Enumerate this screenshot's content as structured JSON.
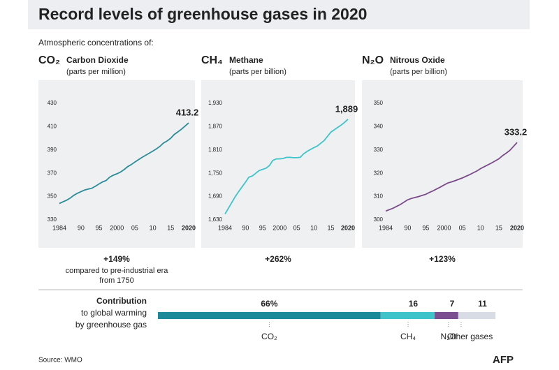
{
  "title": "Record levels of greenhouse gases in 2020",
  "subtitle": "Atmospheric concentrations of:",
  "source": "Source: WMO",
  "logo": "AFP",
  "chart_data": [
    {
      "type": "line",
      "formula": "CO₂",
      "title": "Carbon Dioxide",
      "unit": "(parts per million)",
      "x": [
        1984,
        1985,
        1986,
        1987,
        1988,
        1989,
        1990,
        1991,
        1992,
        1993,
        1994,
        1995,
        1996,
        1997,
        1998,
        1999,
        2000,
        2001,
        2002,
        2003,
        2004,
        2005,
        2006,
        2007,
        2008,
        2009,
        2010,
        2011,
        2012,
        2013,
        2014,
        2015,
        2016,
        2017,
        2018,
        2019,
        2020
      ],
      "series": [
        {
          "name": "Carbon Dioxide",
          "color": "#2a8c99",
          "values": [
            344.1,
            345.5,
            346.9,
            348.7,
            351.1,
            352.8,
            354.2,
            355.6,
            356.4,
            357.1,
            358.8,
            360.8,
            362.6,
            363.8,
            366.6,
            368.3,
            369.5,
            371.0,
            373.1,
            375.6,
            377.4,
            379.6,
            381.7,
            383.6,
            385.4,
            387.2,
            389.0,
            390.9,
            393.1,
            396.0,
            397.7,
            400.0,
            403.3,
            405.5,
            407.8,
            410.5,
            413.2
          ],
          "value_labels": [
            null,
            null,
            null,
            null,
            null,
            null,
            null,
            null,
            null,
            null,
            null,
            null,
            null,
            null,
            null,
            null,
            null,
            null,
            null,
            null,
            null,
            null,
            null,
            null,
            null,
            null,
            null,
            null,
            null,
            null,
            null,
            null,
            null,
            null,
            null,
            null,
            "413.2"
          ]
        }
      ],
      "xlim": [
        1984,
        2020
      ],
      "xticks": [
        1984,
        {
          "value": 1990,
          "label": "90"
        },
        {
          "value": 1995,
          "label": "95"
        },
        2000,
        {
          "value": 2005,
          "label": "05"
        },
        {
          "value": 2010,
          "label": "10"
        },
        {
          "value": 2015,
          "label": "15"
        },
        2020
      ],
      "ylim": [
        330,
        430
      ],
      "yticks": [
        330,
        350,
        370,
        390,
        410,
        430
      ],
      "change": "+149%",
      "change_note": [
        "compared to pre-industrial era",
        "from 1750"
      ]
    },
    {
      "type": "line",
      "formula": "CH₄",
      "title": "Methane",
      "unit": "(parts per billion)",
      "x": [
        1984,
        1985,
        1986,
        1987,
        1988,
        1989,
        1990,
        1991,
        1992,
        1993,
        1994,
        1995,
        1996,
        1997,
        1998,
        1999,
        2000,
        2001,
        2002,
        2003,
        2004,
        2005,
        2006,
        2007,
        2008,
        2009,
        2010,
        2011,
        2012,
        2013,
        2014,
        2015,
        2016,
        2017,
        2018,
        2019,
        2020
      ],
      "series": [
        {
          "name": "Methane",
          "color": "#3cc4cc",
          "values": [
            1645,
            1660,
            1675,
            1690,
            1703,
            1715,
            1727,
            1740,
            1743,
            1750,
            1757,
            1760,
            1763,
            1770,
            1783,
            1787,
            1787,
            1788,
            1791,
            1791,
            1790,
            1790,
            1791,
            1800,
            1806,
            1811,
            1816,
            1820,
            1827,
            1834,
            1845,
            1856,
            1862,
            1868,
            1874,
            1881,
            1889
          ],
          "value_labels": [
            null,
            null,
            null,
            null,
            null,
            null,
            null,
            null,
            null,
            null,
            null,
            null,
            null,
            null,
            null,
            null,
            null,
            null,
            null,
            null,
            null,
            null,
            null,
            null,
            null,
            null,
            null,
            null,
            null,
            null,
            null,
            null,
            null,
            null,
            null,
            null,
            "1,889"
          ]
        }
      ],
      "xlim": [
        1984,
        2020
      ],
      "xticks": [
        1984,
        {
          "value": 1990,
          "label": "90"
        },
        {
          "value": 1995,
          "label": "95"
        },
        2000,
        {
          "value": 2005,
          "label": "05"
        },
        {
          "value": 2010,
          "label": "10"
        },
        {
          "value": 2015,
          "label": "15"
        },
        2020
      ],
      "ylim": [
        1630,
        1930
      ],
      "yticks": [
        {
          "value": 1630,
          "label": "1,630"
        },
        {
          "value": 1690,
          "label": "1,690"
        },
        {
          "value": 1750,
          "label": "1,750"
        },
        {
          "value": 1810,
          "label": "1,810"
        },
        {
          "value": 1870,
          "label": "1,870"
        },
        {
          "value": 1930,
          "label": "1,930"
        }
      ],
      "change": "+262%"
    },
    {
      "type": "line",
      "formula": "N₂O",
      "title": "Nitrous Oxide",
      "unit": "(parts per billion)",
      "x": [
        1984,
        1985,
        1986,
        1987,
        1988,
        1989,
        1990,
        1991,
        1992,
        1993,
        1994,
        1995,
        1996,
        1997,
        1998,
        1999,
        2000,
        2001,
        2002,
        2003,
        2004,
        2005,
        2006,
        2007,
        2008,
        2009,
        2010,
        2011,
        2012,
        2013,
        2014,
        2015,
        2016,
        2017,
        2018,
        2019,
        2020
      ],
      "series": [
        {
          "name": "Nitrous Oxide",
          "color": "#7a4a8a",
          "values": [
            303.8,
            304.4,
            305.0,
            305.8,
            306.6,
            307.6,
            308.6,
            309.2,
            309.6,
            310.0,
            310.5,
            311.0,
            311.8,
            312.5,
            313.3,
            314.1,
            315.0,
            315.8,
            316.3,
            316.8,
            317.4,
            318.0,
            318.7,
            319.4,
            320.2,
            321.0,
            322.0,
            322.8,
            323.6,
            324.4,
            325.3,
            326.2,
            327.5,
            328.6,
            329.8,
            331.5,
            333.2
          ],
          "value_labels": [
            null,
            null,
            null,
            null,
            null,
            null,
            null,
            null,
            null,
            null,
            null,
            null,
            null,
            null,
            null,
            null,
            null,
            null,
            null,
            null,
            null,
            null,
            null,
            null,
            null,
            null,
            null,
            null,
            null,
            null,
            null,
            null,
            null,
            null,
            null,
            null,
            "333.2"
          ]
        }
      ],
      "xlim": [
        1984,
        2020
      ],
      "xticks": [
        1984,
        {
          "value": 1990,
          "label": "90"
        },
        {
          "value": 1995,
          "label": "95"
        },
        2000,
        {
          "value": 2005,
          "label": "05"
        },
        {
          "value": 2010,
          "label": "10"
        },
        {
          "value": 2015,
          "label": "15"
        },
        2020
      ],
      "ylim": [
        300,
        350
      ],
      "yticks": [
        300,
        310,
        320,
        330,
        340,
        350
      ],
      "change": "+123%"
    },
    {
      "type": "stacked-bar",
      "title": "Contribution",
      "subtitle": [
        "to global warming",
        "by greenhouse gas"
      ],
      "series": [
        {
          "name": "CO₂",
          "color": "#1d8a9a",
          "values": [
            66
          ],
          "value_labels": [
            "66%"
          ]
        },
        {
          "name": "CH₄",
          "color": "#3ec3cb",
          "values": [
            16
          ],
          "value_labels": [
            "16"
          ]
        },
        {
          "name": "N₂O",
          "color": "#7b4e92",
          "values": [
            7
          ],
          "value_labels": [
            "7"
          ]
        },
        {
          "name": "Other gases",
          "color": "#d8dce4",
          "values": [
            11
          ],
          "value_labels": [
            "11"
          ]
        }
      ]
    }
  ]
}
